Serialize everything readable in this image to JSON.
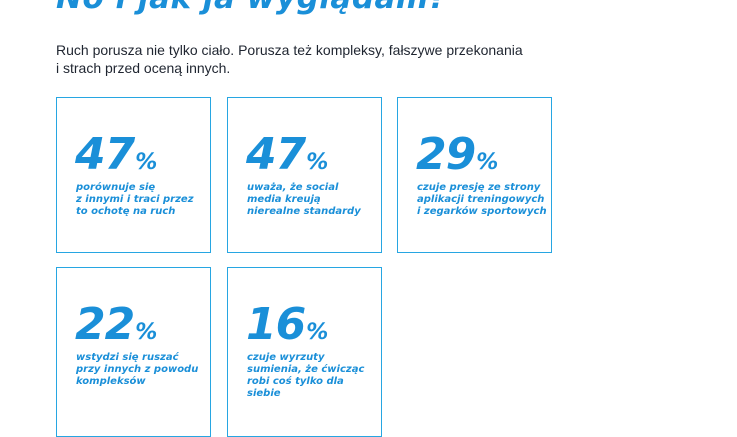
{
  "title": "No i jak ja wyglądam?",
  "intro": "Ruch porusza nie tylko ciało. Porusza też kompleksy, fałszywe przekonania\ni strach przed oceną innych.",
  "stats": [
    {
      "value": "47",
      "unit": "%",
      "text": "porównuje się\nz innymi i traci przez\nto ochotę na ruch"
    },
    {
      "value": "47",
      "unit": "%",
      "text": "uważa, że social\nmedia kreują\nnierealne standardy"
    },
    {
      "value": "29",
      "unit": "%",
      "text": "czuje presję ze strony\naplikacji treningowych\ni zegarków sportowych"
    },
    {
      "value": "22",
      "unit": "%",
      "text": "wstydzi się ruszać\nprzy innych z powodu\nkompleksów"
    },
    {
      "value": "16",
      "unit": "%",
      "text": "czuje wyrzuty\nsumienia, że ćwicząc\nrobi coś tylko dla siebie"
    }
  ],
  "colors": {
    "accent": "#1a8fd8",
    "border": "#27a6e2",
    "text": "#1f2530"
  }
}
